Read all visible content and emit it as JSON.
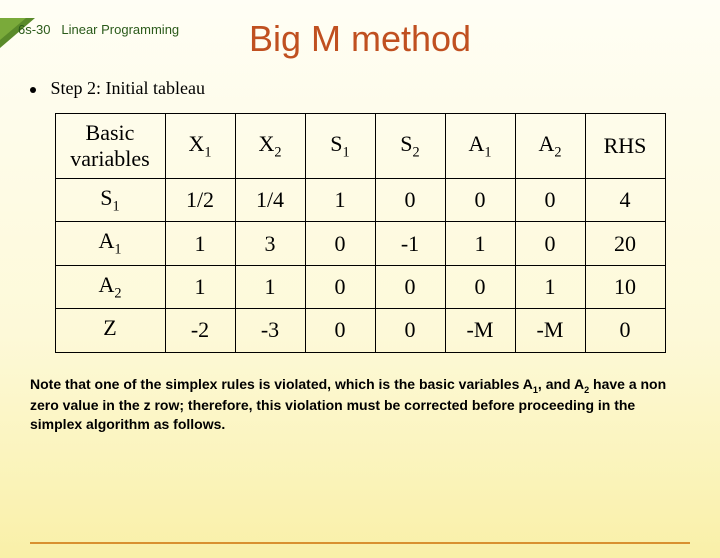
{
  "header": {
    "page_label": "6s-30",
    "section": "Linear Programming"
  },
  "title": "Big M method",
  "step": "Step 2: Initial tableau",
  "table": {
    "headers": {
      "basic": "Basic variables",
      "x1": "X",
      "x1sub": "1",
      "x2": "X",
      "x2sub": "2",
      "s1": "S",
      "s1sub": "1",
      "s2": "S",
      "s2sub": "2",
      "a1": "A",
      "a1sub": "1",
      "a2": "A",
      "a2sub": "2",
      "rhs": "RHS"
    },
    "rows": {
      "r1": {
        "bv": "S",
        "bvsub": "1",
        "c": [
          "1/2",
          "1/4",
          "1",
          "0",
          "0",
          "0",
          "4"
        ]
      },
      "r2": {
        "bv": "A",
        "bvsub": "1",
        "c": [
          "1",
          "3",
          "0",
          "-1",
          "1",
          "0",
          "20"
        ]
      },
      "r3": {
        "bv": "A",
        "bvsub": "2",
        "c": [
          "1",
          "1",
          "0",
          "0",
          "0",
          "1",
          "10"
        ]
      },
      "r4": {
        "bv": "Z",
        "bvsub": "",
        "c": [
          "-2",
          "-3",
          "0",
          "0",
          "-M",
          "-M",
          "0"
        ]
      }
    }
  },
  "note": {
    "part1": "Note that one of the simplex rules is violated, which is the basic variables A",
    "sub1": "1",
    "part2": ", and A",
    "sub2": "2",
    "part3": " have a non zero value in the z row; therefore, this violation must be corrected before proceeding in the simplex algorithm as follows."
  },
  "colors": {
    "title": "#c05020",
    "accent_dark": "#5a8a2a",
    "accent_light": "#7aaa3a",
    "rule": "#d89030"
  }
}
